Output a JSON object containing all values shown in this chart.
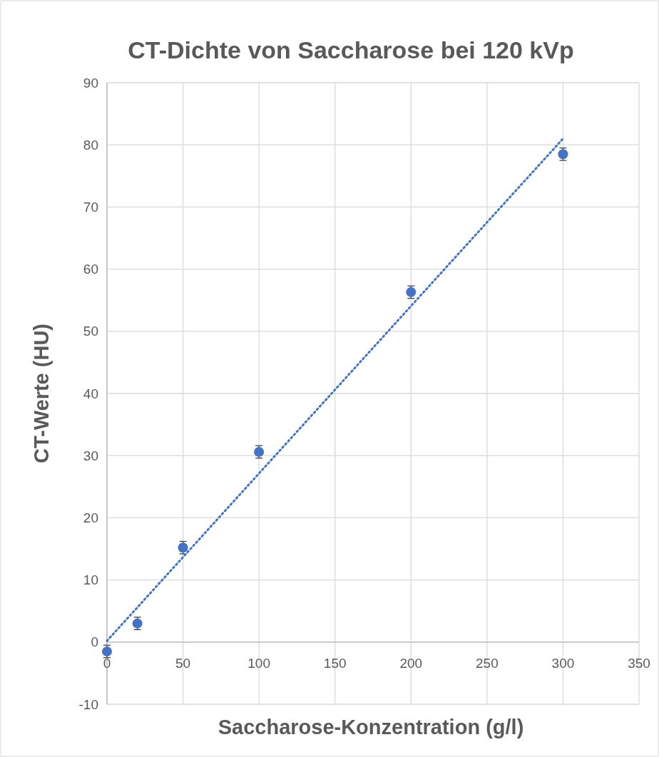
{
  "chart_data": {
    "type": "scatter",
    "title": "CT-Dichte von Saccharose bei 120 kVp",
    "xlabel": "Saccharose-Konzentration (g/l)",
    "ylabel": "CT-Werte (HU)",
    "xlim": [
      0,
      350
    ],
    "xticks": [
      0,
      50,
      100,
      150,
      200,
      250,
      300,
      350
    ],
    "ylim": [
      -10,
      90
    ],
    "yticks": [
      -10,
      0,
      10,
      20,
      30,
      40,
      50,
      60,
      70,
      80,
      90
    ],
    "grid": true,
    "series": [
      {
        "color": "#4472c4",
        "x": [
          0,
          20,
          50,
          100,
          200,
          300
        ],
        "values": [
          -1.5,
          3.0,
          15.2,
          30.6,
          56.3,
          78.5
        ],
        "errors": [
          1,
          1,
          1,
          1,
          1,
          1
        ],
        "marker": "circle"
      },
      {
        "type": "line",
        "color": "#4472c4",
        "x": [
          0,
          300
        ],
        "values": [
          0.2,
          81
        ],
        "marker": "none",
        "line_style": "dotted"
      }
    ]
  }
}
